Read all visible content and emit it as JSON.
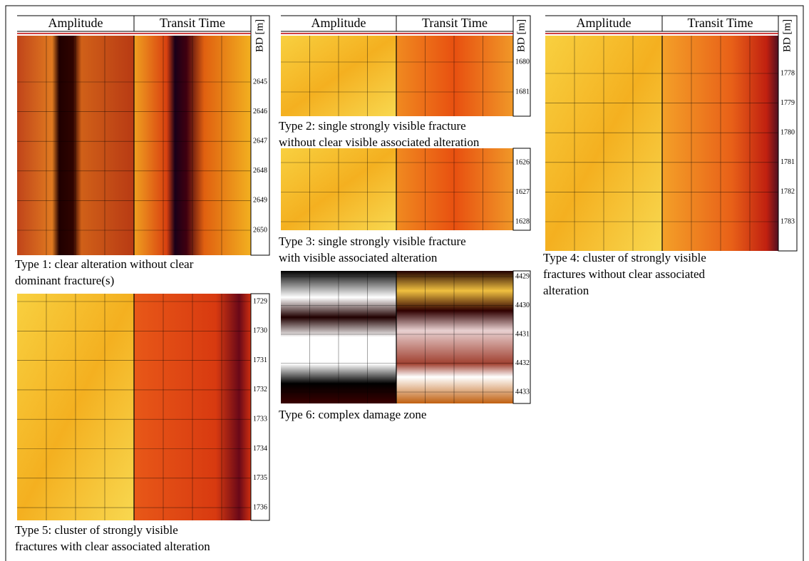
{
  "panels": [
    {
      "headers": [
        "Amplitude",
        "Transit Time"
      ],
      "depth_unit": "BD [m]",
      "depths": [
        2645,
        2646,
        2647,
        2648,
        2649,
        2650
      ],
      "caption": [
        "Type 1: clear alteration without clear",
        "dominant fracture(s)"
      ]
    },
    {
      "depths": [
        1729,
        1730,
        1731,
        1732,
        1733,
        1734,
        1735,
        1736
      ],
      "caption": [
        "Type 5: cluster of strongly visible",
        "fractures with clear  associated alteration"
      ]
    },
    {
      "headers": [
        "Amplitude",
        "Transit Time"
      ],
      "depth_unit": "BD [m]",
      "depths": [
        1680,
        1681
      ],
      "caption": [
        "Type 2: single strongly visible fracture",
        "without clear visible associated alteration"
      ]
    },
    {
      "depths": [
        1626,
        1627,
        1628
      ],
      "caption": [
        "Type 3: single strongly visible fracture",
        "with visible associated alteration"
      ]
    },
    {
      "depths": [
        4429,
        4430,
        4431,
        4432,
        4433
      ],
      "caption": [
        "Type 6: complex damage zone"
      ]
    },
    {
      "headers": [
        "Amplitude",
        "Transit Time"
      ],
      "depth_unit": "BD [m]",
      "depths": [
        1778,
        1779,
        1780,
        1781,
        1782,
        1783
      ],
      "caption": [
        "Type 4: cluster of strongly visible",
        "fractures without clear associated",
        "alteration"
      ]
    }
  ]
}
